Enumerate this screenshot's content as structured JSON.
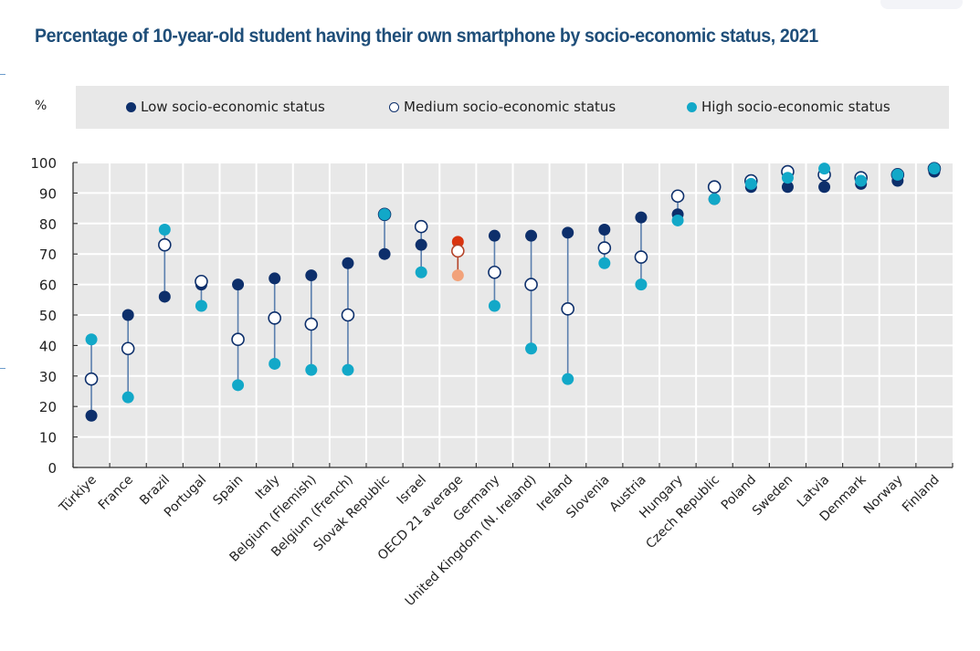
{
  "title": "Percentage of 10-year-old student having their own smartphone by socio-economic status, 2021",
  "colors": {
    "low": "#0d2f6b",
    "medium_fill": "#ffffff",
    "medium_stroke": "#0d2f6b",
    "high": "#12a8c8",
    "oecd_low": "#d9340f",
    "oecd_medium_stroke": "#b5442a",
    "oecd_high": "#f2a27a",
    "connector": "#5a7fae",
    "title": "#1f4e79",
    "plot_bg": "#e8e8e8"
  },
  "legend": {
    "unit_label": "%",
    "items": [
      {
        "key": "low",
        "label": "Low socio-economic status"
      },
      {
        "key": "medium",
        "label": "Medium socio-economic status"
      },
      {
        "key": "high",
        "label": "High socio-economic status"
      }
    ]
  },
  "chart_data": {
    "type": "scatter",
    "subtype": "dot-range",
    "title": "Percentage of 10-year-old student having their own smartphone by socio-economic status, 2021",
    "xlabel": "",
    "ylabel": "%",
    "ylim": [
      0,
      100
    ],
    "yticks": [
      0,
      10,
      20,
      30,
      40,
      50,
      60,
      70,
      80,
      90,
      100
    ],
    "grid": true,
    "legend_position": "top",
    "highlight_category": "OECD 21 average",
    "categories": [
      "Türkiye",
      "France",
      "Brazil",
      "Portugal",
      "Spain",
      "Italy",
      "Belgium (Flemish)",
      "Belgium (French)",
      "Slovak Republic",
      "Israel",
      "OECD 21 average",
      "Germany",
      "United Kingdom (N. Ireland)",
      "Ireland",
      "Slovenia",
      "Austria",
      "Hungary",
      "Czech Republic",
      "Poland",
      "Sweden",
      "Latvia",
      "Denmark",
      "Norway",
      "Finland"
    ],
    "series": [
      {
        "name": "Low socio-economic status",
        "key": "low",
        "values": [
          17,
          50,
          56,
          60,
          60,
          62,
          63,
          67,
          70,
          73,
          74,
          76,
          76,
          77,
          78,
          82,
          83,
          88,
          92,
          92,
          92,
          93,
          94,
          97
        ]
      },
      {
        "name": "Medium socio-economic status",
        "key": "medium",
        "values": [
          29,
          39,
          73,
          61,
          42,
          49,
          47,
          50,
          83,
          79,
          71,
          64,
          60,
          52,
          72,
          69,
          89,
          92,
          94,
          97,
          96,
          95,
          96,
          98
        ]
      },
      {
        "name": "High socio-economic status",
        "key": "high",
        "values": [
          42,
          23,
          78,
          53,
          27,
          34,
          32,
          32,
          83,
          64,
          63,
          53,
          39,
          29,
          67,
          60,
          81,
          88,
          93,
          95,
          98,
          94,
          96,
          98
        ]
      }
    ]
  }
}
